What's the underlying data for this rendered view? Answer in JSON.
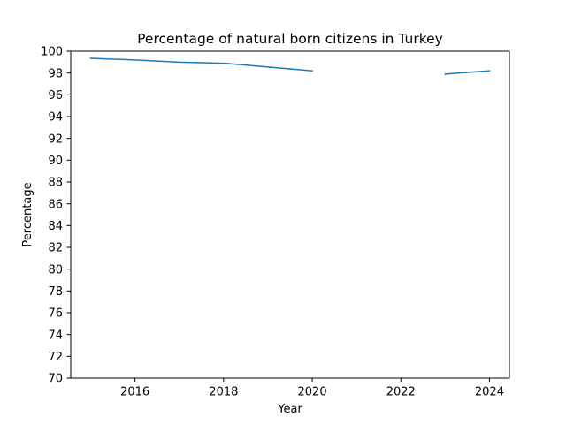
{
  "chart_data": {
    "type": "line",
    "title": "Percentage of natural born citizens in Turkey",
    "xlabel": "Year",
    "ylabel": "Percentage",
    "xlim": [
      2014.55,
      2024.45
    ],
    "ylim": [
      70,
      100
    ],
    "x_ticks": [
      2016,
      2018,
      2020,
      2022,
      2024
    ],
    "y_ticks": [
      70,
      72,
      74,
      76,
      78,
      80,
      82,
      84,
      86,
      88,
      90,
      92,
      94,
      96,
      98,
      100
    ],
    "grid": false,
    "legend": "none",
    "series": [
      {
        "color": "#1f77b4",
        "segments": [
          [
            {
              "x": 2015,
              "y": 99.35
            },
            {
              "x": 2016,
              "y": 99.2
            },
            {
              "x": 2017,
              "y": 99.0
            },
            {
              "x": 2018,
              "y": 98.9
            },
            {
              "x": 2019,
              "y": 98.55
            },
            {
              "x": 2020,
              "y": 98.2
            }
          ],
          [
            {
              "x": 2023,
              "y": 97.9
            },
            {
              "x": 2024,
              "y": 98.2
            }
          ]
        ]
      }
    ]
  }
}
